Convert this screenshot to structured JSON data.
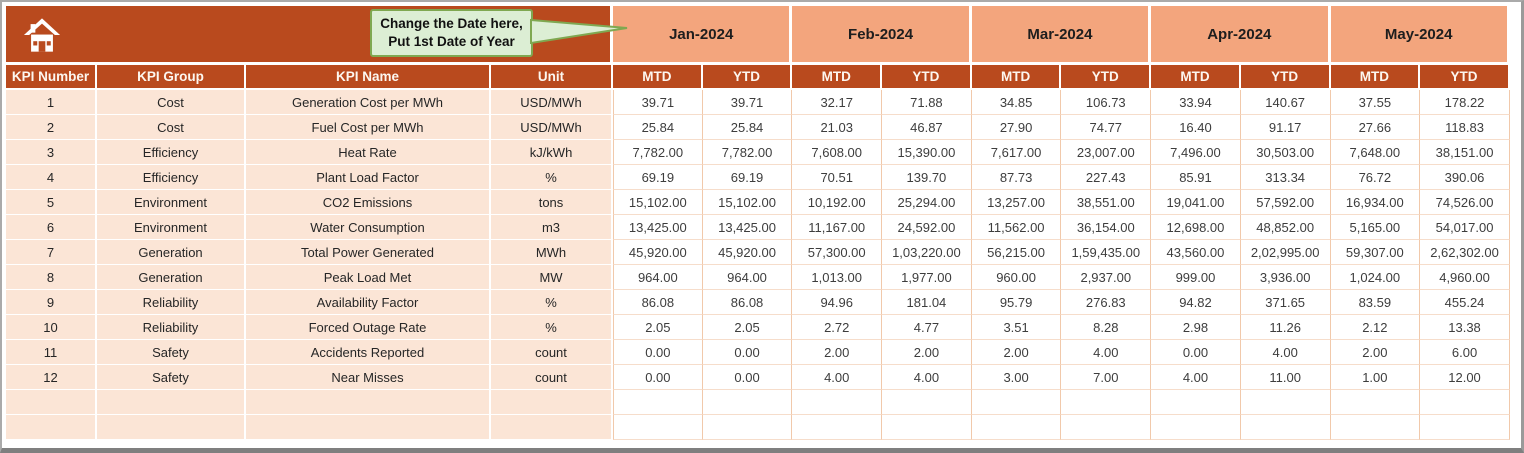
{
  "header": {
    "callout": {
      "line1": "Change the Date here,",
      "line2": "Put 1st Date of Year"
    },
    "months": [
      "Jan-2024",
      "Feb-2024",
      "Mar-2024",
      "Apr-2024",
      "May-2024"
    ],
    "sub_headers": [
      "MTD",
      "YTD"
    ]
  },
  "table": {
    "columns": [
      "KPI Number",
      "KPI Group",
      "KPI Name",
      "Unit"
    ],
    "rows": [
      {
        "number": "1",
        "group": "Cost",
        "name": "Generation Cost per MWh",
        "unit": "USD/MWh",
        "values": [
          "39.71",
          "39.71",
          "32.17",
          "71.88",
          "34.85",
          "106.73",
          "33.94",
          "140.67",
          "37.55",
          "178.22"
        ]
      },
      {
        "number": "2",
        "group": "Cost",
        "name": "Fuel Cost per MWh",
        "unit": "USD/MWh",
        "values": [
          "25.84",
          "25.84",
          "21.03",
          "46.87",
          "27.90",
          "74.77",
          "16.40",
          "91.17",
          "27.66",
          "118.83"
        ]
      },
      {
        "number": "3",
        "group": "Efficiency",
        "name": "Heat Rate",
        "unit": "kJ/kWh",
        "values": [
          "7,782.00",
          "7,782.00",
          "7,608.00",
          "15,390.00",
          "7,617.00",
          "23,007.00",
          "7,496.00",
          "30,503.00",
          "7,648.00",
          "38,151.00"
        ]
      },
      {
        "number": "4",
        "group": "Efficiency",
        "name": "Plant Load Factor",
        "unit": "%",
        "values": [
          "69.19",
          "69.19",
          "70.51",
          "139.70",
          "87.73",
          "227.43",
          "85.91",
          "313.34",
          "76.72",
          "390.06"
        ]
      },
      {
        "number": "5",
        "group": "Environment",
        "name": "CO2 Emissions",
        "unit": "tons",
        "values": [
          "15,102.00",
          "15,102.00",
          "10,192.00",
          "25,294.00",
          "13,257.00",
          "38,551.00",
          "19,041.00",
          "57,592.00",
          "16,934.00",
          "74,526.00"
        ]
      },
      {
        "number": "6",
        "group": "Environment",
        "name": "Water Consumption",
        "unit": "m3",
        "values": [
          "13,425.00",
          "13,425.00",
          "11,167.00",
          "24,592.00",
          "11,562.00",
          "36,154.00",
          "12,698.00",
          "48,852.00",
          "5,165.00",
          "54,017.00"
        ]
      },
      {
        "number": "7",
        "group": "Generation",
        "name": "Total Power Generated",
        "unit": "MWh",
        "values": [
          "45,920.00",
          "45,920.00",
          "57,300.00",
          "1,03,220.00",
          "56,215.00",
          "1,59,435.00",
          "43,560.00",
          "2,02,995.00",
          "59,307.00",
          "2,62,302.00"
        ]
      },
      {
        "number": "8",
        "group": "Generation",
        "name": "Peak Load Met",
        "unit": "MW",
        "values": [
          "964.00",
          "964.00",
          "1,013.00",
          "1,977.00",
          "960.00",
          "2,937.00",
          "999.00",
          "3,936.00",
          "1,024.00",
          "4,960.00"
        ]
      },
      {
        "number": "9",
        "group": "Reliability",
        "name": "Availability Factor",
        "unit": "%",
        "values": [
          "86.08",
          "86.08",
          "94.96",
          "181.04",
          "95.79",
          "276.83",
          "94.82",
          "371.65",
          "83.59",
          "455.24"
        ]
      },
      {
        "number": "10",
        "group": "Reliability",
        "name": "Forced Outage Rate",
        "unit": "%",
        "values": [
          "2.05",
          "2.05",
          "2.72",
          "4.77",
          "3.51",
          "8.28",
          "2.98",
          "11.26",
          "2.12",
          "13.38"
        ]
      },
      {
        "number": "11",
        "group": "Safety",
        "name": "Accidents Reported",
        "unit": "count",
        "values": [
          "0.00",
          "0.00",
          "2.00",
          "2.00",
          "2.00",
          "4.00",
          "0.00",
          "4.00",
          "2.00",
          "6.00"
        ]
      },
      {
        "number": "12",
        "group": "Safety",
        "name": "Near Misses",
        "unit": "count",
        "values": [
          "0.00",
          "0.00",
          "4.00",
          "4.00",
          "3.00",
          "7.00",
          "4.00",
          "11.00",
          "1.00",
          "12.00"
        ]
      }
    ],
    "empty_rows": 2
  },
  "colors": {
    "header_bg": "#B94A1E",
    "header_text": "#FDF7F0",
    "month_band_bg": "#F3A57D",
    "row_label_bg": "#FBE5D6",
    "grid_line": "#F1C9AB",
    "grid_line_h": "#F6DDCB",
    "callout_bg": "#DCEED4",
    "callout_border": "#7FA851",
    "frame_border": "#7F7F7F"
  }
}
